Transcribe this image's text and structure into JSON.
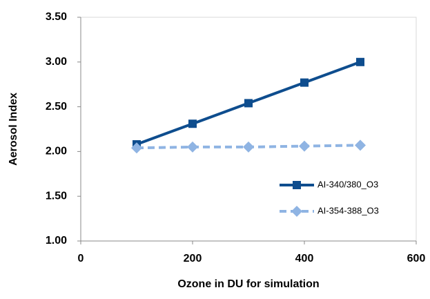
{
  "chart_data": {
    "type": "line",
    "xlabel": "Ozone in DU for simulation",
    "ylabel": "Aerosol Index",
    "x": [
      100,
      200,
      300,
      400,
      500
    ],
    "series": [
      {
        "name": "AI-340/380_O3",
        "color": "#0e4d8e",
        "dash": false,
        "marker": "square",
        "values": [
          2.08,
          2.31,
          2.54,
          2.77,
          3.0
        ]
      },
      {
        "name": "AI-354-388_O3",
        "color": "#8fb4e3",
        "dash": true,
        "marker": "diamond",
        "values": [
          2.04,
          2.05,
          2.05,
          2.06,
          2.07
        ]
      }
    ],
    "xlim": [
      0,
      600
    ],
    "xticks": [
      0,
      200,
      400,
      600
    ],
    "ylim": [
      1.0,
      3.5
    ],
    "yticks": [
      {
        "value": 1.0,
        "label": "1.00"
      },
      {
        "value": 1.5,
        "label": "1.50"
      },
      {
        "value": 2.0,
        "label": "2.00"
      },
      {
        "value": 2.5,
        "label": "2.50"
      },
      {
        "value": 3.0,
        "label": "3.00"
      },
      {
        "value": 3.5,
        "label": "3.50"
      }
    ],
    "grid": false,
    "legend": "right"
  }
}
